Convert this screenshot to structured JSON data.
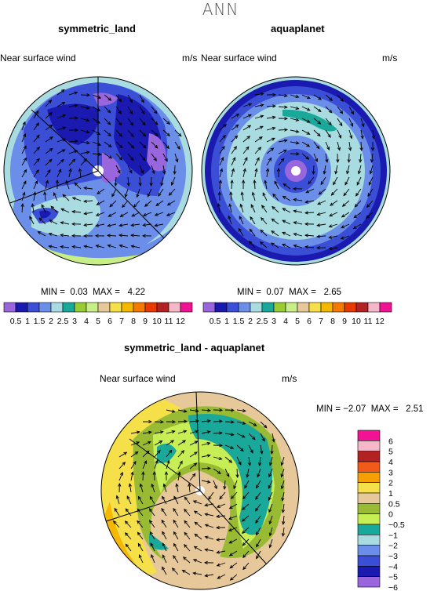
{
  "season": "ANN",
  "panels": [
    {
      "title": "symmetric_land",
      "variable": "Near surface wind",
      "units": "m/s",
      "min_label": "MIN =",
      "min": "0.03",
      "max_label": "MAX =",
      "max": "4.22"
    },
    {
      "title": "aquaplanet",
      "variable": "Near surface wind",
      "units": "m/s",
      "min_label": "MIN =",
      "min": "0.07",
      "max_label": "MAX =",
      "max": "2.65"
    },
    {
      "title": "symmetric_land - aquaplanet",
      "variable": "Near surface wind",
      "units": "m/s",
      "min_label": "MIN =",
      "min": "−2.07",
      "max_label": "MAX =",
      "max": "2.51"
    }
  ],
  "chart_data": [
    {
      "type": "heatmap",
      "title": "symmetric_land",
      "projection": "polar stereographic",
      "variable": "Near surface wind",
      "units": "m/s",
      "min": 0.03,
      "max": 4.22,
      "colorbar": {
        "orientation": "horizontal",
        "levels": [
          0.5,
          1,
          1.5,
          2,
          2.5,
          3,
          4,
          5,
          6,
          7,
          8,
          9,
          10,
          11,
          12
        ],
        "tick_labels": [
          "0.5",
          "1",
          "1.5",
          "2",
          "2.5",
          "3",
          "4",
          "5",
          "6",
          "7",
          "8",
          "9",
          "10",
          "11",
          "12"
        ],
        "colors": [
          "#9966dd",
          "#1a1ab0",
          "#3a4fd6",
          "#6b8ee8",
          "#a8dce0",
          "#1aa89a",
          "#99cc33",
          "#c8ee88",
          "#e6c89a",
          "#f5e04a",
          "#f5b800",
          "#f57b00",
          "#e83a00",
          "#b22222",
          "#f5b8c8",
          "#f01493"
        ]
      }
    },
    {
      "type": "heatmap",
      "title": "aquaplanet",
      "projection": "polar stereographic",
      "variable": "Near surface wind",
      "units": "m/s",
      "min": 0.07,
      "max": 2.65,
      "colorbar": {
        "orientation": "horizontal",
        "levels": [
          0.5,
          1,
          1.5,
          2,
          2.5,
          3,
          4,
          5,
          6,
          7,
          8,
          9,
          10,
          11,
          12
        ],
        "tick_labels": [
          "0.5",
          "1",
          "1.5",
          "2",
          "2.5",
          "3",
          "4",
          "5",
          "6",
          "7",
          "8",
          "9",
          "10",
          "11",
          "12"
        ],
        "colors": [
          "#9966dd",
          "#1a1ab0",
          "#3a4fd6",
          "#6b8ee8",
          "#a8dce0",
          "#1aa89a",
          "#99cc33",
          "#c8ee88",
          "#e6c89a",
          "#f5e04a",
          "#f5b800",
          "#f57b00",
          "#e83a00",
          "#b22222",
          "#f5b8c8",
          "#f01493"
        ]
      }
    },
    {
      "type": "heatmap",
      "title": "symmetric_land - aquaplanet",
      "projection": "polar stereographic",
      "variable": "Near surface wind",
      "units": "m/s",
      "min": -2.07,
      "max": 2.51,
      "colorbar": {
        "orientation": "vertical",
        "levels": [
          6,
          5,
          4,
          3,
          2,
          1,
          0.5,
          0,
          -0.5,
          -1,
          -2,
          -3,
          -4,
          -5,
          -6
        ],
        "tick_labels": [
          "6",
          "5",
          "4",
          "3",
          "2",
          "1",
          "0.5",
          "0",
          "−0.5",
          "−1",
          "−2",
          "−3",
          "−4",
          "−5",
          "−6"
        ],
        "colors": [
          "#f01493",
          "#f5b8c8",
          "#b22222",
          "#f05a1a",
          "#f5a000",
          "#f5e04a",
          "#e6c89a",
          "#99bb33",
          "#c8ee55",
          "#1aa89a",
          "#a8dce0",
          "#6b8ee8",
          "#3a4fd6",
          "#1a1ab0",
          "#9966dd"
        ]
      }
    }
  ]
}
